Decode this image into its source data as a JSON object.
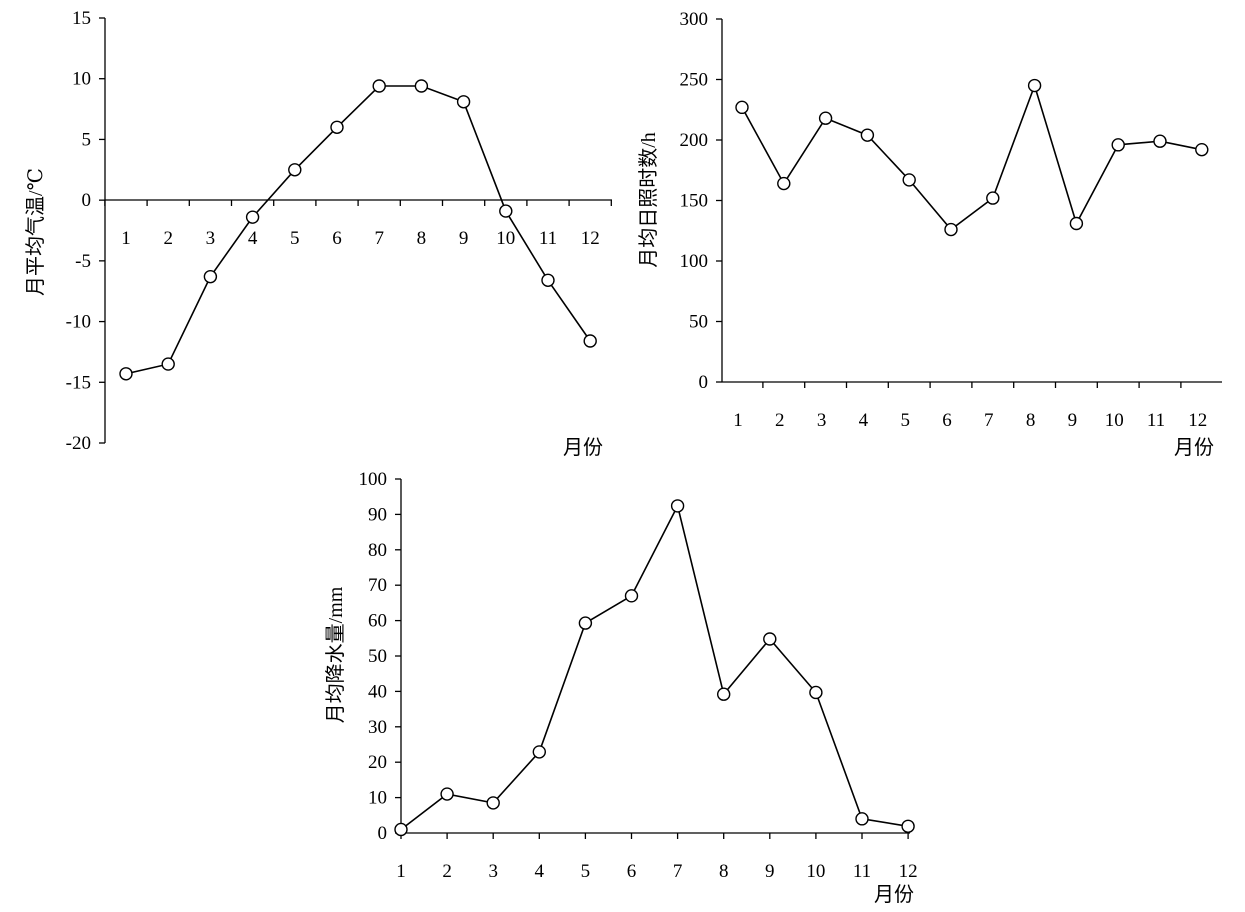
{
  "chart_data": [
    {
      "type": "line",
      "title": "",
      "xlabel": "月份",
      "ylabel": "月平均气温/℃",
      "categories": [
        "1",
        "2",
        "3",
        "4",
        "5",
        "6",
        "7",
        "8",
        "9",
        "10",
        "11",
        "12"
      ],
      "values": [
        -14.3,
        -13.5,
        -6.3,
        -1.4,
        2.5,
        6.0,
        9.4,
        9.4,
        8.1,
        -0.9,
        -6.6,
        -11.6
      ],
      "ylim": [
        -20,
        15
      ],
      "yticks": [
        "-20",
        "-15",
        "-10",
        "-5",
        "0",
        "5",
        "10",
        "15"
      ],
      "x_axis_at_zero": true,
      "marker": "open-circle",
      "grid": false,
      "color": "#000000"
    },
    {
      "type": "line",
      "title": "",
      "xlabel": "月份",
      "ylabel": "月均日照时数/h",
      "categories": [
        "1",
        "2",
        "3",
        "4",
        "5",
        "6",
        "7",
        "8",
        "9",
        "10",
        "11",
        "12"
      ],
      "values": [
        227,
        164,
        218,
        204,
        167,
        126,
        152,
        245,
        131,
        196,
        199,
        192
      ],
      "ylim": [
        0,
        300
      ],
      "yticks": [
        "0",
        "50",
        "100",
        "150",
        "200",
        "250",
        "300"
      ],
      "marker": "open-circle",
      "grid": false,
      "color": "#000000"
    },
    {
      "type": "line",
      "title": "",
      "xlabel": "月份",
      "ylabel": "月均降水量/mm",
      "categories": [
        "1",
        "2",
        "3",
        "4",
        "5",
        "6",
        "7",
        "8",
        "9",
        "10",
        "11",
        "12"
      ],
      "values": [
        1.0,
        11.0,
        8.5,
        22.9,
        59.3,
        67.0,
        92.4,
        39.2,
        54.8,
        39.7,
        4.0,
        1.9
      ],
      "ylim": [
        0,
        100
      ],
      "yticks": [
        "0",
        "10",
        "20",
        "30",
        "40",
        "50",
        "60",
        "70",
        "80",
        "90",
        "100"
      ],
      "marker": "open-circle",
      "grid": false,
      "color": "#000000"
    }
  ]
}
